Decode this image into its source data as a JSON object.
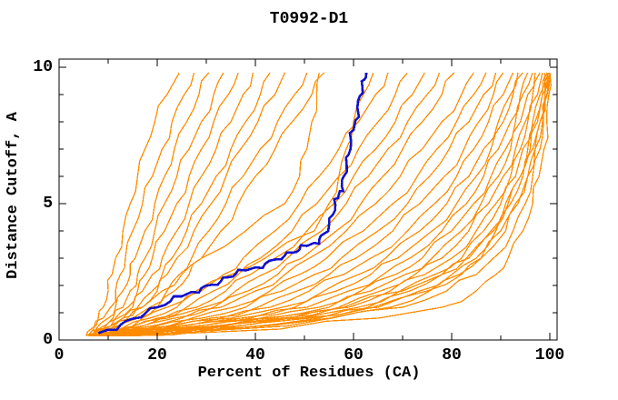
{
  "title": "T0992-D1",
  "chart_data": {
    "type": "line",
    "title": "T0992-D1",
    "xlabel": "Percent of Residues (CA)",
    "ylabel": "Distance Cutoff, A",
    "xlim": [
      0,
      100
    ],
    "ylim": [
      0,
      10
    ],
    "grid": false,
    "legend": "none",
    "x_major_ticks": [
      0,
      20,
      40,
      60,
      80,
      100
    ],
    "x_minor_ticks": [
      10,
      30,
      50,
      70,
      90
    ],
    "y_major_ticks": [
      0,
      5,
      10
    ],
    "y_minor_ticks": [
      1,
      2,
      3,
      4,
      6,
      7,
      8,
      9
    ],
    "x_tick_labels": [
      "0",
      "20",
      "40",
      "60",
      "80",
      "100"
    ],
    "y_tick_labels": [
      "0",
      "5",
      "10"
    ],
    "colors": {
      "background": "#ffffff",
      "axis": "#000000",
      "models": "#ff8c00",
      "highlight": "#1111cc"
    },
    "highlight_series": {
      "name": "highlighted-model",
      "points": [
        [
          8,
          0.25
        ],
        [
          10,
          0.38
        ],
        [
          12.5,
          0.55
        ],
        [
          15,
          0.78
        ],
        [
          17.7,
          1.0
        ],
        [
          20,
          1.2
        ],
        [
          22.7,
          1.42
        ],
        [
          25,
          1.6
        ],
        [
          27,
          1.76
        ],
        [
          29,
          1.9
        ],
        [
          31,
          2.02
        ],
        [
          33,
          2.16
        ],
        [
          34.5,
          2.3
        ],
        [
          36,
          2.42
        ],
        [
          38,
          2.55
        ],
        [
          40,
          2.66
        ],
        [
          42,
          2.8
        ],
        [
          44,
          2.95
        ],
        [
          46,
          3.1
        ],
        [
          47.5,
          3.2
        ],
        [
          49,
          3.32
        ],
        [
          50.5,
          3.45
        ],
        [
          52,
          3.56
        ],
        [
          53,
          3.68
        ],
        [
          54,
          3.9
        ],
        [
          55,
          4.2
        ],
        [
          55.8,
          4.6
        ],
        [
          56.3,
          4.95
        ],
        [
          56.8,
          5.2
        ],
        [
          57.2,
          5.45
        ],
        [
          57.6,
          5.65
        ],
        [
          58,
          6.0
        ],
        [
          58.6,
          6.45
        ],
        [
          59,
          6.8
        ],
        [
          59.5,
          7.3
        ],
        [
          60,
          7.7
        ],
        [
          60.4,
          8.05
        ],
        [
          60.8,
          8.5
        ],
        [
          61.3,
          8.95
        ],
        [
          61.8,
          9.3
        ],
        [
          62.2,
          9.55
        ],
        [
          62.6,
          9.8
        ]
      ]
    },
    "cutoffs": [
      0.15,
      0.4,
      0.8,
      1.2,
      1.8,
      2.4,
      3,
      4,
      5,
      6,
      7,
      8,
      9,
      9.8
    ],
    "model_series_percents": [
      [
        5.5,
        6.5,
        8,
        9,
        10,
        10.8,
        11.5,
        13,
        14.5,
        16,
        17.5,
        19.5,
        22,
        24.5
      ],
      [
        5.5,
        7,
        9,
        10.5,
        11.5,
        12.5,
        13.5,
        15,
        17,
        19,
        21,
        23,
        25.5,
        27.5
      ],
      [
        6,
        7.5,
        10,
        11.5,
        13,
        14.5,
        15.5,
        17.5,
        19.5,
        21.5,
        23.5,
        26,
        28.5,
        30.5
      ],
      [
        6,
        8,
        11,
        13,
        14.5,
        16,
        17.5,
        19.5,
        21.5,
        24,
        26.5,
        29,
        31.5,
        33.5
      ],
      [
        6,
        8.5,
        11.5,
        14,
        16,
        17.5,
        19,
        21.5,
        24,
        26.5,
        29,
        31.5,
        34.5,
        36.5
      ],
      [
        6,
        9,
        12,
        15,
        17,
        19,
        21,
        24,
        26.5,
        29,
        32,
        35,
        37.5,
        39.5
      ],
      [
        6.5,
        9.5,
        13,
        16,
        19,
        21,
        23,
        26,
        29,
        32,
        35,
        38,
        41,
        43
      ],
      [
        6.5,
        10,
        14,
        17,
        20,
        22,
        24,
        27.5,
        31,
        34,
        37,
        40.5,
        44,
        46
      ],
      [
        7,
        10.5,
        15,
        18.5,
        22,
        24.5,
        27,
        30.5,
        34,
        37.5,
        41,
        44.5,
        48,
        50.5
      ],
      [
        7,
        11,
        16,
        20,
        23.5,
        26.5,
        29,
        33,
        36.5,
        40,
        44,
        47.5,
        51.5,
        54
      ],
      [
        6.5,
        9,
        13,
        17,
        21,
        25,
        29,
        38,
        46,
        49,
        50.5,
        51.5,
        52.5,
        53
      ],
      [
        7.5,
        12,
        17,
        22,
        28,
        35,
        42,
        52,
        55,
        57,
        58.5,
        60,
        62,
        64
      ],
      [
        7.5,
        12.5,
        18.5,
        24,
        29,
        33.5,
        37.5,
        44,
        49,
        53,
        57,
        61,
        64.5,
        67
      ],
      [
        8,
        13,
        20,
        26,
        31.5,
        36.5,
        41,
        47.5,
        52.5,
        57,
        61,
        65,
        68.5,
        71
      ],
      [
        8,
        13.5,
        21,
        28,
        34,
        39,
        44,
        50.5,
        56,
        60,
        64.5,
        68.5,
        72,
        74.5
      ],
      [
        8,
        14,
        22,
        29.5,
        36,
        41.5,
        46.5,
        53.5,
        58.5,
        63,
        67,
        71,
        75,
        77.5
      ],
      [
        8.5,
        15,
        23.5,
        31.5,
        38.5,
        44.5,
        49.5,
        56.5,
        61.5,
        66,
        70,
        74,
        78,
        80.5
      ],
      [
        8.5,
        15.5,
        25,
        33,
        40,
        46,
        51,
        58.5,
        64.5,
        69.5,
        74,
        78,
        82,
        84.5
      ],
      [
        9,
        16.5,
        27,
        35.5,
        43,
        49,
        54.5,
        62,
        68,
        73,
        77,
        81,
        84.5,
        87
      ],
      [
        9,
        17.5,
        29,
        38,
        45.5,
        52,
        57.5,
        65,
        71,
        75.5,
        79.5,
        83.5,
        86.5,
        89
      ],
      [
        9.5,
        18.5,
        31,
        40.5,
        48.5,
        55,
        60.5,
        68,
        73.5,
        78.5,
        82.5,
        85.5,
        88.5,
        90.5
      ],
      [
        9.5,
        19.5,
        33,
        43,
        51,
        58,
        63.5,
        71,
        76.5,
        81,
        84.5,
        87.5,
        90.5,
        92.5
      ],
      [
        10,
        20.5,
        35,
        45.5,
        54,
        61,
        66.5,
        73.5,
        79,
        83.5,
        86.5,
        89.5,
        92,
        93.5
      ],
      [
        10,
        21.5,
        37,
        48,
        56.5,
        63.5,
        69,
        76,
        81,
        85,
        88,
        90.5,
        92.5,
        94.5
      ],
      [
        10.5,
        22.5,
        39,
        50.5,
        59,
        66,
        71.5,
        78,
        83,
        86.5,
        89.5,
        92,
        94,
        95.5
      ],
      [
        11,
        24,
        41,
        53,
        61.5,
        68.5,
        74,
        80,
        84.5,
        88,
        91,
        93,
        94.5,
        96.5
      ],
      [
        11,
        25,
        43,
        55,
        63.5,
        70.5,
        76,
        82,
        86,
        89.5,
        92,
        94,
        95.5,
        97
      ],
      [
        11.5,
        26.5,
        45,
        57,
        65.5,
        72.5,
        78,
        83.5,
        87.5,
        90.5,
        93,
        95,
        96.5,
        98
      ],
      [
        12,
        28,
        47,
        59,
        67.5,
        74.5,
        80,
        85,
        89,
        92,
        94,
        95.5,
        97.5,
        98.5
      ],
      [
        12.5,
        30,
        49,
        61,
        69.5,
        76.5,
        82,
        86.5,
        90,
        93,
        94.5,
        96.5,
        98,
        99
      ],
      [
        13,
        32,
        51,
        63,
        71.5,
        78,
        83.5,
        88,
        91,
        94,
        95.5,
        97,
        98.5,
        99.5
      ],
      [
        13.5,
        34,
        53,
        65,
        73.5,
        80,
        85,
        89,
        92,
        94.5,
        96.5,
        98,
        99,
        100
      ],
      [
        14.5,
        36,
        55.5,
        67.5,
        75.5,
        81.5,
        86,
        90,
        93,
        95.5,
        97,
        98.5,
        99.5,
        100
      ],
      [
        6,
        20,
        42,
        58,
        70,
        78,
        83,
        88.5,
        91.5,
        94,
        96,
        97.5,
        98.5,
        99.5
      ],
      [
        6,
        25,
        48,
        64,
        75,
        82,
        86,
        91,
        93.5,
        95.5,
        97,
        98,
        99,
        99.7
      ],
      [
        6,
        32,
        55,
        70,
        79,
        85,
        88.5,
        92.5,
        95,
        96.5,
        98,
        98.7,
        99.4,
        100
      ],
      [
        6,
        45,
        65,
        78,
        85,
        89,
        91.5,
        94.5,
        96.5,
        97.8,
        98.8,
        99.4,
        99.8,
        100
      ]
    ]
  }
}
